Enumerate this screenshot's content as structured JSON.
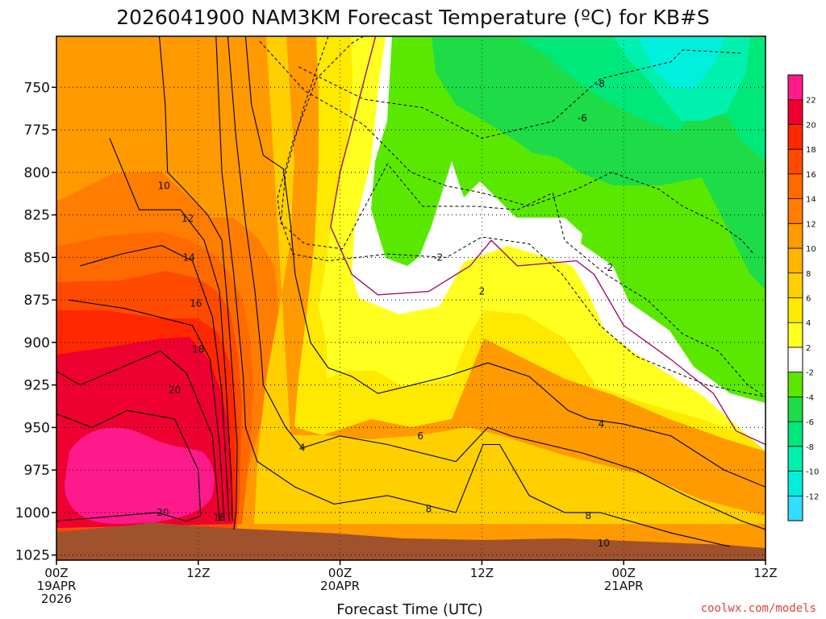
{
  "chart_data": {
    "type": "heatmap",
    "title": "2026041900 NAM3KM Forecast Temperature (ºC) for KB#S",
    "xlabel": "Forecast Time (UTC)",
    "ylabel": "",
    "credit": "coolwx.com/models",
    "x_ticks": [
      {
        "label": "00Z",
        "date": "19APR",
        "year": "2026",
        "hour": 0
      },
      {
        "label": "12Z",
        "date": "",
        "year": "",
        "hour": 12
      },
      {
        "label": "00Z",
        "date": "20APR",
        "year": "",
        "hour": 24
      },
      {
        "label": "12Z",
        "date": "",
        "year": "",
        "hour": 36
      },
      {
        "label": "00Z",
        "date": "21APR",
        "year": "",
        "hour": 48
      },
      {
        "label": "12Z",
        "date": "",
        "year": "",
        "hour": 60
      }
    ],
    "xlim": [
      0,
      60
    ],
    "y_ticks": [
      "750",
      "775",
      "800",
      "825",
      "850",
      "875",
      "900",
      "925",
      "950",
      "975",
      "1000",
      "1025"
    ],
    "ylim_hpa": [
      720,
      1028
    ],
    "colorbar": {
      "levels": [
        22,
        20,
        18,
        16,
        14,
        12,
        10,
        8,
        6,
        4,
        2,
        -2,
        -4,
        -6,
        -8,
        -10,
        -12
      ],
      "colors": [
        "#ff1a8c",
        "#ee0030",
        "#ff2800",
        "#ff4b00",
        "#ff6a00",
        "#ff7d00",
        "#ff9a00",
        "#ffb400",
        "#ffcf00",
        "#ffe900",
        "#ffff20",
        "#ffffff",
        "#5be800",
        "#1ddc48",
        "#00e87a",
        "#00f0ae",
        "#00f0dd",
        "#33ddff"
      ]
    },
    "isotherms": [
      {
        "value": -8,
        "points": [
          [
            20.5,
            738
          ],
          [
            26,
            757
          ],
          [
            31,
            762
          ],
          [
            36,
            780
          ],
          [
            42,
            770
          ],
          [
            46,
            745
          ],
          [
            52,
            735
          ],
          [
            53,
            728
          ],
          [
            58,
            730
          ]
        ]
      },
      {
        "value": -6,
        "points": [
          [
            17.2,
            723
          ],
          [
            21,
            752
          ],
          [
            26,
            772
          ],
          [
            30,
            800
          ],
          [
            33,
            808
          ],
          [
            36,
            812
          ],
          [
            40,
            820
          ],
          [
            44,
            810
          ],
          [
            47,
            800
          ],
          [
            51,
            810
          ],
          [
            53,
            820
          ],
          [
            56,
            830
          ],
          [
            58,
            840
          ],
          [
            59,
            848
          ]
        ]
      },
      {
        "value": -4,
        "points": [
          [
            26,
            720
          ],
          [
            25,
            724
          ],
          [
            22,
            745
          ],
          [
            20,
            782
          ],
          [
            18.7,
            815
          ],
          [
            19,
            830
          ],
          [
            21,
            842
          ],
          [
            24.2,
            845
          ],
          [
            26.5,
            815
          ],
          [
            28,
            795
          ],
          [
            31,
            820
          ],
          [
            35.5,
            820
          ],
          [
            39,
            822
          ],
          [
            42,
            812
          ],
          [
            43,
            840
          ],
          [
            46.5,
            860
          ],
          [
            50,
            875
          ],
          [
            53,
            895
          ],
          [
            56,
            905
          ],
          [
            58.5,
            925
          ],
          [
            60,
            932
          ]
        ]
      },
      {
        "value": -2,
        "points": [
          [
            23,
            720
          ],
          [
            21,
            760
          ],
          [
            19.4,
            800
          ],
          [
            19,
            828
          ],
          [
            20,
            848
          ],
          [
            23,
            852
          ],
          [
            28,
            848
          ],
          [
            33,
            850
          ],
          [
            36,
            838
          ],
          [
            40,
            842
          ],
          [
            42.8,
            860
          ],
          [
            46,
            890
          ],
          [
            49,
            908
          ],
          [
            55,
            925
          ],
          [
            60,
            932
          ]
        ]
      },
      {
        "value": 2,
        "points": [
          [
            27,
            720
          ],
          [
            25.5,
            760
          ],
          [
            24,
            800
          ],
          [
            23.2,
            832
          ],
          [
            25,
            860
          ],
          [
            27.2,
            872
          ],
          [
            31.5,
            870
          ],
          [
            35,
            855
          ],
          [
            36.8,
            840
          ],
          [
            39,
            855
          ],
          [
            44,
            852
          ],
          [
            45.5,
            860
          ],
          [
            48,
            890
          ],
          [
            52,
            910
          ],
          [
            55.6,
            930
          ],
          [
            57.5,
            952
          ],
          [
            60,
            960
          ]
        ]
      },
      {
        "value": 4,
        "points": [
          [
            16,
            720
          ],
          [
            16.5,
            760
          ],
          [
            17.5,
            790
          ],
          [
            19.2,
            798
          ],
          [
            19.8,
            830
          ],
          [
            20.2,
            860
          ],
          [
            21.5,
            900
          ],
          [
            23,
            915
          ],
          [
            25,
            920
          ],
          [
            27.2,
            930
          ],
          [
            33,
            920
          ],
          [
            36.5,
            912
          ],
          [
            40,
            920
          ],
          [
            43.3,
            940
          ],
          [
            45,
            945
          ],
          [
            48,
            948
          ],
          [
            52,
            955
          ],
          [
            56.5,
            975
          ],
          [
            60,
            985
          ]
        ]
      },
      {
        "value": 6,
        "points": [
          [
            14.5,
            720
          ],
          [
            15.2,
            780
          ],
          [
            16,
            830
          ],
          [
            16.8,
            870
          ],
          [
            17.3,
            905
          ],
          [
            17.5,
            925
          ],
          [
            19.4,
            950
          ],
          [
            20.8,
            962
          ],
          [
            24,
            955
          ],
          [
            28,
            960
          ],
          [
            33.8,
            970
          ],
          [
            36.5,
            950
          ],
          [
            38.5,
            955
          ],
          [
            44.5,
            965
          ],
          [
            49,
            975
          ],
          [
            53.2,
            990
          ],
          [
            58,
            1005
          ],
          [
            60,
            1010
          ]
        ]
      },
      {
        "value": 8,
        "points": [
          [
            13.5,
            720
          ],
          [
            14,
            800
          ],
          [
            15,
            860
          ],
          [
            15.8,
            920
          ],
          [
            16,
            950
          ],
          [
            17,
            970
          ],
          [
            20.2,
            985
          ],
          [
            23.5,
            995
          ],
          [
            28,
            990
          ],
          [
            33.8,
            1000
          ],
          [
            36.1,
            960
          ],
          [
            37.5,
            960
          ],
          [
            40,
            990
          ],
          [
            43,
            1000
          ],
          [
            46,
            1000
          ],
          [
            52,
            1012
          ],
          [
            57,
            1020
          ]
        ]
      },
      {
        "value": 10,
        "points": [
          [
            8.7,
            720
          ],
          [
            9.2,
            760
          ],
          [
            9.4,
            800
          ],
          [
            10.8,
            810
          ],
          [
            12.8,
            825
          ],
          [
            14,
            840
          ],
          [
            14.5,
            880
          ],
          [
            15,
            930
          ],
          [
            15.3,
            960
          ],
          [
            15.2,
            1000
          ],
          [
            15,
            1010
          ]
        ]
      },
      {
        "value": 12,
        "points": [
          [
            4.5,
            780
          ],
          [
            7,
            822
          ],
          [
            10.5,
            822
          ],
          [
            12.5,
            840
          ],
          [
            13.8,
            870
          ],
          [
            14.3,
            920
          ],
          [
            14.8,
            980
          ],
          [
            14.9,
            1005
          ]
        ]
      },
      {
        "value": 14,
        "points": [
          [
            2,
            855
          ],
          [
            5.5,
            848
          ],
          [
            8.9,
            843
          ],
          [
            11.5,
            852
          ],
          [
            13.2,
            885
          ],
          [
            14,
            930
          ],
          [
            14.5,
            990
          ],
          [
            14.6,
            1005
          ]
        ]
      },
      {
        "value": 16,
        "points": [
          [
            1,
            875
          ],
          [
            5.8,
            880
          ],
          [
            11.5,
            890
          ],
          [
            13,
            910
          ],
          [
            13.8,
            960
          ],
          [
            14.2,
            1005
          ]
        ]
      },
      {
        "value": 18,
        "points": [
          [
            0,
            917
          ],
          [
            2,
            925
          ],
          [
            8.8,
            905
          ],
          [
            11,
            918
          ],
          [
            13.2,
            955
          ],
          [
            13.8,
            1005
          ]
        ]
      },
      {
        "value": 20,
        "points": [
          [
            0,
            942
          ],
          [
            3,
            950
          ],
          [
            6,
            940
          ],
          [
            10,
            945
          ],
          [
            12,
            975
          ],
          [
            12.2,
            1002
          ],
          [
            11,
            1005
          ],
          [
            8.5,
            1000
          ],
          [
            0,
            1005
          ]
        ]
      }
    ],
    "contour_labels": [
      {
        "text": "-8",
        "x": 46.0,
        "y": 748
      },
      {
        "text": "-6",
        "x": 44.5,
        "y": 768
      },
      {
        "text": "-2",
        "x": 32.3,
        "y": 850
      },
      {
        "text": "-2",
        "x": 46.7,
        "y": 856
      },
      {
        "text": "2",
        "x": 36.0,
        "y": 870
      },
      {
        "text": "4",
        "x": 46.1,
        "y": 948
      },
      {
        "text": "4",
        "x": 20.8,
        "y": 962
      },
      {
        "text": "6",
        "x": 30.8,
        "y": 955
      },
      {
        "text": "8",
        "x": 31.5,
        "y": 998
      },
      {
        "text": "8",
        "x": 45.0,
        "y": 1002
      },
      {
        "text": "10",
        "x": 46.3,
        "y": 1018
      },
      {
        "text": "10",
        "x": 9.1,
        "y": 808
      },
      {
        "text": "12",
        "x": 11.1,
        "y": 827
      },
      {
        "text": "14",
        "x": 11.2,
        "y": 850
      },
      {
        "text": "16",
        "x": 11.8,
        "y": 877
      },
      {
        "text": "18",
        "x": 12.0,
        "y": 904
      },
      {
        "text": "20",
        "x": 10.0,
        "y": 928
      },
      {
        "text": "20",
        "x": 9.0,
        "y": 1000
      },
      {
        "text": "18",
        "x": 13.8,
        "y": 1003
      }
    ]
  }
}
